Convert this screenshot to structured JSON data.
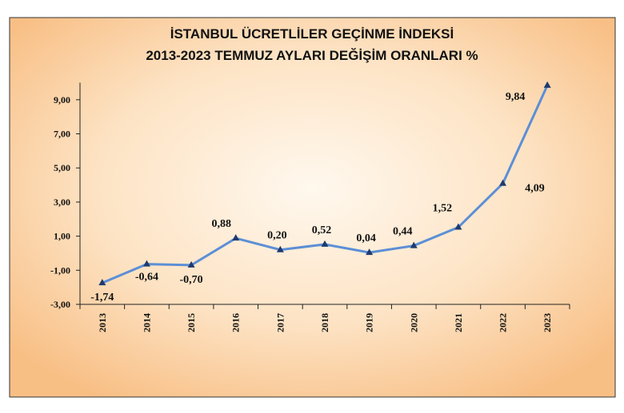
{
  "chart_data": {
    "type": "line",
    "title": "İSTANBUL ÜCRETLİLER GEÇİNME İNDEKSİ",
    "subtitle": "2013-2023 TEMMUZ AYLARI DEĞİŞİM ORANLARI %",
    "categories": [
      "2013",
      "2014",
      "2015",
      "2016",
      "2017",
      "2018",
      "2019",
      "2020",
      "2021",
      "2022",
      "2023"
    ],
    "series": [
      {
        "color": "#5b8fd6",
        "marker_color": "#1f3a6e",
        "values": [
          -1.74,
          -0.64,
          -0.7,
          0.88,
          0.2,
          0.52,
          0.04,
          0.44,
          1.52,
          4.09,
          9.84
        ],
        "value_labels": [
          "-1,74",
          "-0,64",
          "-0,70",
          "0,88",
          "0,20",
          "0,52",
          "0,04",
          "0,44",
          "1,52",
          "4,09",
          "9,84"
        ]
      }
    ],
    "ylim": [
      -3,
      10
    ],
    "yticks": [
      {
        "value": -3,
        "label": "-3,00"
      },
      {
        "value": -1,
        "label": "-1,00"
      },
      {
        "value": 1,
        "label": "1,00"
      },
      {
        "value": 3,
        "label": "3,00"
      },
      {
        "value": 5,
        "label": "5,00"
      },
      {
        "value": 7,
        "label": "7,00"
      },
      {
        "value": 9,
        "label": "9,00"
      }
    ],
    "grid": false
  }
}
